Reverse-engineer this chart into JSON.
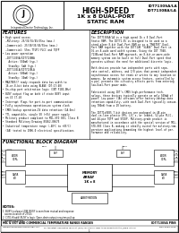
{
  "title_main": "HIGH-SPEED",
  "title_sub1": "1K x 8 DUAL-PORT",
  "title_sub2": "STATIC RAM",
  "part_number1": "IDT7130SA/LA",
  "part_number2": "IDT7130BA/LA",
  "section_features": "FEATURES",
  "section_description": "DESCRIPTION",
  "section_block": "FUNCTIONAL BLOCK DIAGRAM",
  "company": "Integrated Device Technology, Inc.",
  "footer_left": "MIL & EXT AND COMMERCIAL TEMPERATURE RANGE RANGES",
  "footer_right": "IDT7130SA PINS",
  "bottom_text": "Integrated Device Technology, Inc.",
  "page_num": "1",
  "bg_color": "#ffffff",
  "border_color": "#000000",
  "text_color": "#000000"
}
